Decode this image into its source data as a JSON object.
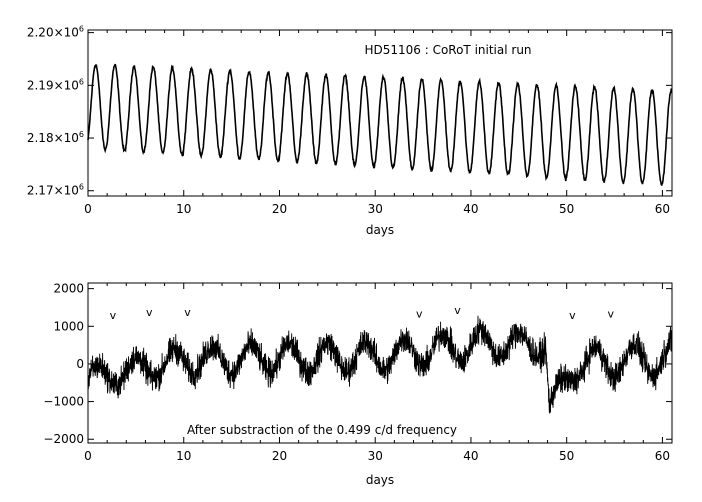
{
  "chart_data": [
    {
      "type": "line",
      "title": "HD51106 : CoRoT initial run",
      "xlabel": "days",
      "ylabel": "",
      "xlim": [
        0,
        61
      ],
      "ylim": [
        2169000,
        2200500
      ],
      "x_ticks": [
        0,
        10,
        20,
        30,
        40,
        50,
        60
      ],
      "y_ticks": [
        {
          "value": 2170000,
          "mantissa": "2.17",
          "times": "×10",
          "exp": "6"
        },
        {
          "value": 2180000,
          "mantissa": "2.18",
          "times": "×10",
          "exp": "6"
        },
        {
          "value": 2190000,
          "mantissa": "2.19",
          "times": "×10",
          "exp": "6"
        },
        {
          "value": 2200000,
          "mantissa": "2.20",
          "times": "×10",
          "exp": "6"
        }
      ],
      "series": [
        {
          "style": "sinusoid",
          "period_days": 2.004,
          "mean_start": 2186000,
          "mean_end": 2180000,
          "amplitude_start": 8000,
          "amplitude_end": 9000,
          "phase_peak_day": 0.8,
          "noise": 300,
          "color": "#000000"
        }
      ]
    },
    {
      "type": "line",
      "title": "",
      "annotation": "After substraction of the 0.499 c/d frequency",
      "xlabel": "days",
      "ylabel": "",
      "xlim": [
        0,
        61
      ],
      "ylim": [
        -2100,
        2150
      ],
      "x_ticks": [
        0,
        10,
        20,
        30,
        40,
        50,
        60
      ],
      "y_ticks": [
        {
          "value": 2000,
          "label": "2000"
        },
        {
          "value": 1000,
          "label": "1000"
        },
        {
          "value": 0,
          "label": "0"
        },
        {
          "value": -1000,
          "label": "−1000"
        },
        {
          "value": -2000,
          "label": "−2000"
        }
      ],
      "markers": {
        "symbol": "v",
        "points": [
          {
            "x": 2.6,
            "y": 1200
          },
          {
            "x": 6.4,
            "y": 1280
          },
          {
            "x": 10.4,
            "y": 1280
          },
          {
            "x": 34.6,
            "y": 1230
          },
          {
            "x": 38.6,
            "y": 1320
          },
          {
            "x": 50.6,
            "y": 1200
          },
          {
            "x": 54.6,
            "y": 1230
          }
        ]
      },
      "series": [
        {
          "style": "residual",
          "period_days": 4.0,
          "envelope": [
            {
              "x": 0,
              "mean": -400,
              "amp": 300
            },
            {
              "x": 10,
              "mean": 100,
              "amp": 350
            },
            {
              "x": 30,
              "mean": 200,
              "amp": 400
            },
            {
              "x": 42,
              "mean": 550,
              "amp": 400
            },
            {
              "x": 47.8,
              "mean": 500,
              "amp": 300
            },
            {
              "x": 48.2,
              "mean": -1200,
              "amp": 300
            },
            {
              "x": 51,
              "mean": 0,
              "amp": 400
            },
            {
              "x": 61,
              "mean": 150,
              "amp": 450
            }
          ],
          "noise": 320,
          "color": "#000000"
        }
      ]
    }
  ]
}
